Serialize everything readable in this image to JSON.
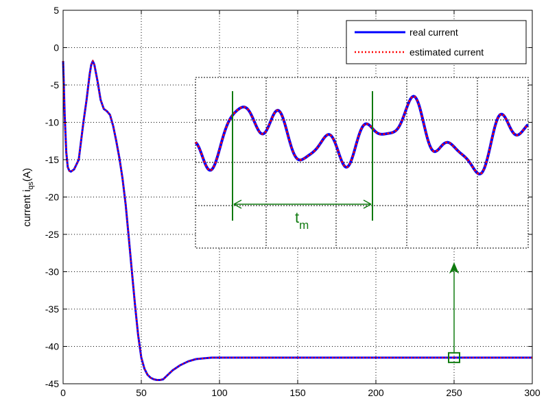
{
  "colors": {
    "real": "#0000ff",
    "estimated": "#ff0000",
    "annotation": "#0f7a0f",
    "grid": "#000000"
  },
  "chart_data": {
    "type": "line",
    "title": "",
    "xlabel": "",
    "ylabel": "current i",
    "ylabel_sub": "qs",
    "ylabel_unit": "(A)",
    "xlim": [
      0,
      300
    ],
    "ylim": [
      -45,
      5
    ],
    "xticks": [
      0,
      50,
      100,
      150,
      200,
      250,
      300
    ],
    "yticks": [
      5,
      0,
      -5,
      -10,
      -15,
      -20,
      -25,
      -30,
      -35,
      -40,
      -45
    ],
    "grid": true,
    "legend_position": "top-right",
    "series": [
      {
        "name": "real current",
        "style": "solid",
        "x": [
          0,
          1,
          2,
          3,
          4,
          5,
          7,
          10,
          13,
          15,
          17,
          18,
          19,
          20,
          22,
          24,
          26,
          28,
          30,
          32,
          34,
          36,
          38,
          40,
          42,
          44,
          46,
          48,
          50,
          52,
          54,
          56,
          58,
          60,
          62,
          64,
          66,
          70,
          75,
          80,
          85,
          90,
          95,
          100,
          150,
          200,
          250,
          300
        ],
        "y": [
          -1.8,
          -9,
          -14,
          -16,
          -16.5,
          -16.6,
          -16.3,
          -15,
          -10,
          -7,
          -3.5,
          -2.3,
          -1.8,
          -2.3,
          -4.5,
          -7,
          -8.2,
          -8.5,
          -9,
          -10.5,
          -12.5,
          -14.8,
          -17.5,
          -21,
          -25.5,
          -30,
          -34.5,
          -38.5,
          -41.5,
          -43,
          -43.8,
          -44.2,
          -44.4,
          -44.5,
          -44.5,
          -44.4,
          -44,
          -43.2,
          -42.5,
          -42,
          -41.7,
          -41.6,
          -41.5,
          -41.5,
          -41.5,
          -41.5,
          -41.5,
          -41.5
        ]
      },
      {
        "name": "estimated current",
        "style": "dotted",
        "same_as": "real current"
      }
    ],
    "inset": {
      "description_values": "zoomed oscillation of the steady-state current",
      "annotation_label": "t",
      "annotation_sub": "m",
      "marker_x": 250,
      "marker_y": -41.5
    }
  }
}
